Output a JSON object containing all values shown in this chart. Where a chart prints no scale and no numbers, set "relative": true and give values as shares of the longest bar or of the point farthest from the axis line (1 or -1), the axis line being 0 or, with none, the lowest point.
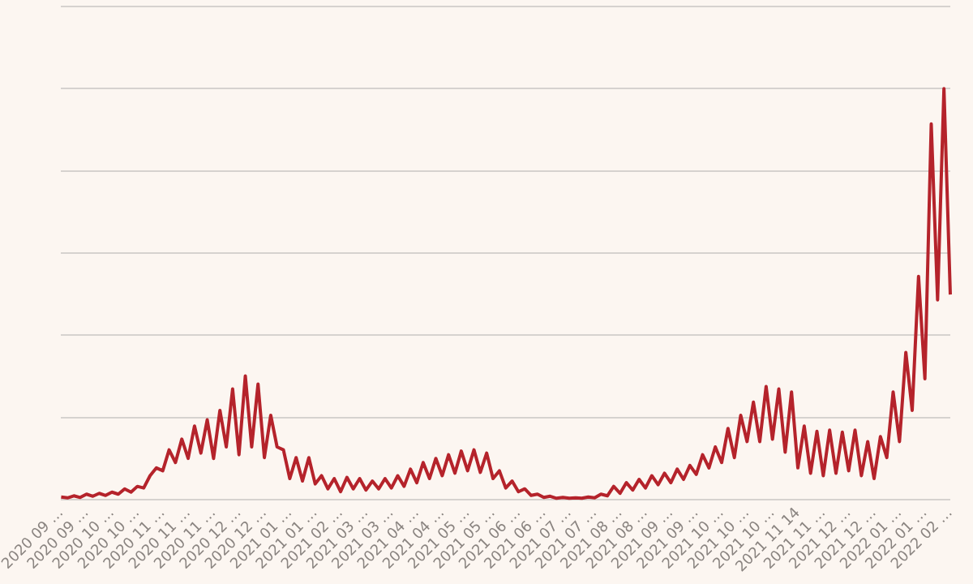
{
  "chart_data": {
    "type": "line",
    "relative": true,
    "grid": "y",
    "tick_labels": "x",
    "marker": "none",
    "line_style": "solid",
    "categories": [
      "2020 09 …",
      null,
      null,
      null,
      "2020 09 …",
      null,
      null,
      null,
      "2020 10 …",
      null,
      null,
      null,
      "2020 10 …",
      null,
      null,
      null,
      "2020 11 …",
      null,
      null,
      null,
      "2020 11 …",
      null,
      null,
      null,
      "2020 11 …",
      null,
      null,
      null,
      "2020 12 …",
      null,
      null,
      null,
      "2020 12 …",
      null,
      null,
      null,
      "2021 01 …",
      null,
      null,
      null,
      "2021 01 …",
      null,
      null,
      null,
      "2021 02 …",
      null,
      null,
      null,
      "2021 03 …",
      null,
      null,
      null,
      "2021 03 …",
      null,
      null,
      null,
      "2021 04 …",
      null,
      null,
      null,
      "2021 04 …",
      null,
      null,
      null,
      "2021 05 …",
      null,
      null,
      null,
      "2021 05 …",
      null,
      null,
      null,
      "2021 06 …",
      null,
      null,
      null,
      "2021 06 …",
      null,
      null,
      null,
      "2021 07 …",
      null,
      null,
      null,
      "2021 07 …",
      null,
      null,
      null,
      "2021 08 …",
      null,
      null,
      null,
      "2021 08 …",
      null,
      null,
      null,
      "2021 09 …",
      null,
      null,
      null,
      "2021 09 …",
      null,
      null,
      null,
      "2021 10 …",
      null,
      null,
      null,
      "2021 10 …",
      null,
      null,
      null,
      "2021 10 …",
      null,
      null,
      null,
      "2021 11 14",
      null,
      null,
      null,
      "2021 11 …",
      null,
      null,
      null,
      "2021 12 …",
      null,
      null,
      null,
      "2021 12 …",
      null,
      null,
      null,
      "2022 01 …",
      null,
      null,
      null,
      "2022 01 …",
      null,
      null,
      null,
      "2022 02 …"
    ],
    "series": [
      {
        "color": "#b5232b",
        "values": [
          0.006,
          0.004,
          0.009,
          0.005,
          0.013,
          0.008,
          0.015,
          0.01,
          0.018,
          0.013,
          0.026,
          0.018,
          0.032,
          0.028,
          0.058,
          0.077,
          0.07,
          0.121,
          0.09,
          0.147,
          0.1,
          0.179,
          0.113,
          0.194,
          0.1,
          0.217,
          0.128,
          0.269,
          0.109,
          0.301,
          0.128,
          0.281,
          0.102,
          0.205,
          0.128,
          0.121,
          0.051,
          0.102,
          0.045,
          0.102,
          0.038,
          0.058,
          0.026,
          0.051,
          0.019,
          0.054,
          0.026,
          0.051,
          0.023,
          0.045,
          0.026,
          0.051,
          0.028,
          0.058,
          0.032,
          0.074,
          0.041,
          0.09,
          0.051,
          0.1,
          0.058,
          0.109,
          0.064,
          0.118,
          0.07,
          0.121,
          0.066,
          0.113,
          0.051,
          0.07,
          0.028,
          0.045,
          0.019,
          0.026,
          0.01,
          0.013,
          0.005,
          0.008,
          0.003,
          0.005,
          0.003,
          0.004,
          0.003,
          0.006,
          0.004,
          0.013,
          0.009,
          0.032,
          0.015,
          0.041,
          0.023,
          0.049,
          0.028,
          0.058,
          0.036,
          0.064,
          0.041,
          0.074,
          0.049,
          0.083,
          0.061,
          0.109,
          0.077,
          0.128,
          0.09,
          0.173,
          0.102,
          0.205,
          0.141,
          0.237,
          0.141,
          0.275,
          0.147,
          0.269,
          0.115,
          0.262,
          0.077,
          0.179,
          0.064,
          0.166,
          0.058,
          0.169,
          0.064,
          0.164,
          0.07,
          0.169,
          0.058,
          0.141,
          0.051,
          0.153,
          0.102,
          0.262,
          0.141,
          0.358,
          0.217,
          0.543,
          0.294,
          0.914,
          0.486,
          1,
          0.499
        ]
      }
    ]
  }
}
